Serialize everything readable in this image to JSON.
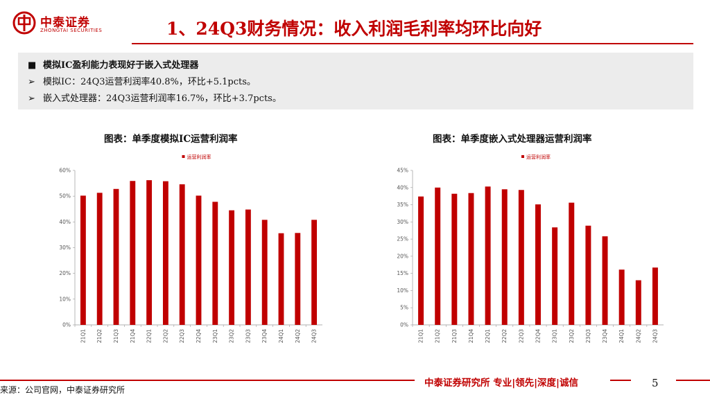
{
  "header": {
    "logo_cn": "中泰证券",
    "logo_en": "ZHONGTAI SECURITIES",
    "title": "1、24Q3财务情况：收入利润毛利率均环比向好"
  },
  "summary": {
    "heading_marker": "■",
    "heading": "模拟IC盈利能力表现好于嵌入式处理器",
    "bullet_marker": "➢",
    "points": [
      "模拟IC：24Q3运营利润率40.8%，环比+5.1pcts。",
      "嵌入式处理器：24Q3运营利润率16.7%，环比+3.7pcts。"
    ]
  },
  "colors": {
    "accent": "#c00000",
    "bar": "#c00000",
    "panel": "#ececec"
  },
  "chart_data": [
    {
      "type": "bar",
      "title": "图表：单季度模拟IC运营利润率",
      "legend": "运营利润率",
      "categories": [
        "21Q1",
        "21Q2",
        "21Q3",
        "21Q4",
        "22Q1",
        "22Q2",
        "22Q3",
        "22Q4",
        "23Q1",
        "23Q2",
        "23Q3",
        "23Q4",
        "24Q1",
        "24Q2",
        "24Q3"
      ],
      "values": [
        50.2,
        51.3,
        52.8,
        55.9,
        56.2,
        55.8,
        54.6,
        50.2,
        47.8,
        44.5,
        44.8,
        40.8,
        35.6,
        35.7,
        40.8
      ],
      "ylim": [
        0,
        60
      ],
      "yticks": [
        "0%",
        "10%",
        "20%",
        "30%",
        "40%",
        "50%",
        "60%"
      ],
      "legend_position": "top-center",
      "grid": false
    },
    {
      "type": "bar",
      "title": "图表：单季度嵌入式处理器运营利润率",
      "legend": "运营利润率",
      "categories": [
        "21Q1",
        "21Q2",
        "21Q3",
        "21Q4",
        "22Q1",
        "22Q2",
        "22Q3",
        "22Q4",
        "23Q1",
        "23Q2",
        "23Q3",
        "23Q4",
        "24Q1",
        "24Q2",
        "24Q3"
      ],
      "values": [
        37.4,
        40.0,
        38.2,
        38.4,
        40.3,
        39.5,
        39.3,
        35.1,
        28.4,
        35.6,
        28.9,
        25.8,
        16.1,
        13.0,
        16.7
      ],
      "ylim": [
        0,
        45
      ],
      "yticks": [
        "0%",
        "5%",
        "10%",
        "15%",
        "20%",
        "25%",
        "30%",
        "35%",
        "40%",
        "45%"
      ],
      "legend_position": "top-center",
      "grid": false
    }
  ],
  "footer": {
    "brand": "中泰证券研究所 专业|领先|深度|诚信",
    "page": "5",
    "source": "来源：公司官网，中泰证券研究所"
  }
}
